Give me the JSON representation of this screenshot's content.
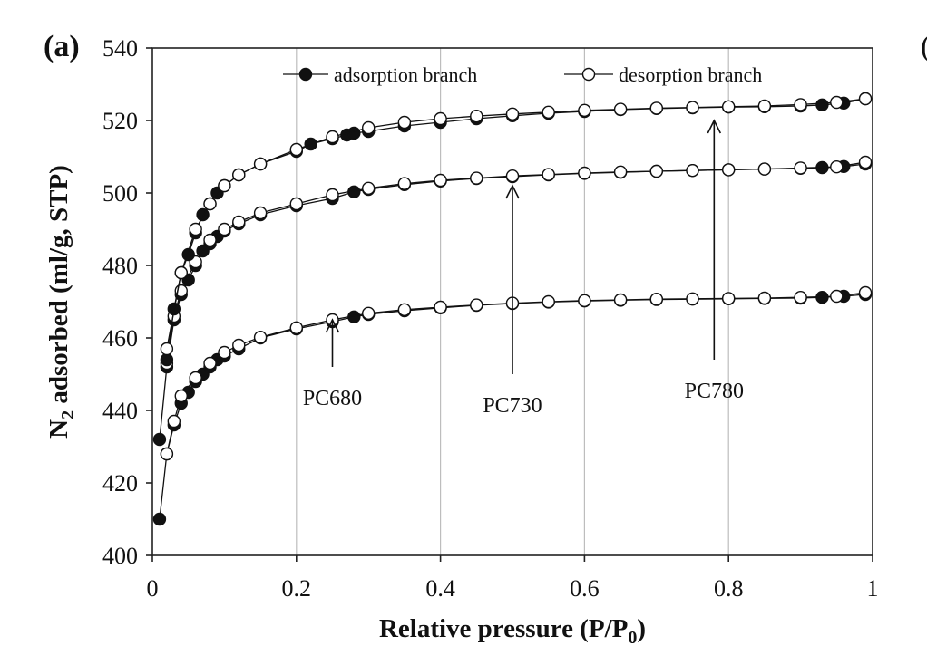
{
  "panel_label": "(a)",
  "clipped_right_char": "(",
  "chart_data": {
    "type": "scatter",
    "title": "",
    "xlabel": "Relative pressure (P/P",
    "xlabel_sub": "0",
    "xlabel_close": ")",
    "ylabel_pre": "N",
    "ylabel_sub": "2",
    "ylabel_main": " adsorbed (ml/g, STP)",
    "xlim": [
      0,
      1
    ],
    "ylim": [
      400,
      540
    ],
    "xticks": [
      0,
      0.2,
      0.4,
      0.6,
      0.8,
      1
    ],
    "xtick_labels": [
      "0",
      "0.2",
      "0.4",
      "0.6",
      "0.8",
      "1"
    ],
    "yticks": [
      400,
      420,
      440,
      460,
      480,
      500,
      520,
      540
    ],
    "ytick_labels": [
      "400",
      "420",
      "440",
      "460",
      "480",
      "500",
      "520",
      "540"
    ],
    "grid": "vertical",
    "legend_position": "top",
    "legend": [
      {
        "label": "adsorption branch",
        "marker": "filled-circle"
      },
      {
        "label": "desorption branch",
        "marker": "open-circle"
      }
    ],
    "annotations": [
      {
        "text": "PC680",
        "arrow_from": [
          0.25,
          452
        ],
        "arrow_to": [
          0.25,
          465
        ]
      },
      {
        "text": "PC730",
        "arrow_from": [
          0.5,
          450
        ],
        "arrow_to": [
          0.5,
          502
        ]
      },
      {
        "text": "PC780",
        "arrow_from": [
          0.78,
          454
        ],
        "arrow_to": [
          0.78,
          520
        ]
      }
    ],
    "series": [
      {
        "group": "PC680",
        "kind": "adsorption",
        "x": [
          0.01,
          0.02,
          0.03,
          0.04,
          0.05,
          0.06,
          0.07,
          0.08,
          0.09,
          0.1,
          0.12,
          0.15,
          0.2,
          0.25,
          0.28,
          0.3,
          0.35,
          0.4,
          0.45,
          0.5,
          0.55,
          0.6,
          0.65,
          0.7,
          0.75,
          0.8,
          0.85,
          0.9,
          0.93,
          0.96,
          0.99
        ],
        "y": [
          410,
          428,
          436,
          442,
          445,
          448,
          450,
          452,
          454,
          455,
          457,
          460,
          462.5,
          464.5,
          465.8,
          466.5,
          467.5,
          468.3,
          469,
          469.5,
          469.9,
          470.2,
          470.4,
          470.6,
          470.7,
          470.8,
          470.9,
          471,
          471.2,
          471.5,
          472
        ]
      },
      {
        "group": "PC680",
        "kind": "desorption",
        "x": [
          0.99,
          0.95,
          0.9,
          0.85,
          0.8,
          0.75,
          0.7,
          0.65,
          0.6,
          0.55,
          0.5,
          0.45,
          0.4,
          0.35,
          0.3,
          0.25,
          0.2,
          0.15,
          0.12,
          0.1,
          0.08,
          0.06,
          0.04,
          0.03,
          0.02
        ],
        "y": [
          472.5,
          471.5,
          471.2,
          471,
          470.9,
          470.8,
          470.7,
          470.5,
          470.3,
          470,
          469.6,
          469.1,
          468.5,
          467.8,
          466.8,
          465,
          462.8,
          460.2,
          458,
          456,
          453,
          449,
          444,
          437,
          428
        ]
      },
      {
        "group": "PC730",
        "kind": "adsorption",
        "x": [
          0.01,
          0.02,
          0.03,
          0.04,
          0.05,
          0.06,
          0.07,
          0.08,
          0.09,
          0.1,
          0.12,
          0.15,
          0.2,
          0.25,
          0.28,
          0.3,
          0.35,
          0.4,
          0.45,
          0.5,
          0.55,
          0.6,
          0.65,
          0.7,
          0.75,
          0.8,
          0.85,
          0.9,
          0.93,
          0.96,
          0.99
        ],
        "y": [
          432,
          452,
          465,
          472,
          476,
          480,
          484,
          486,
          488,
          489.5,
          491.5,
          494,
          496.5,
          498.5,
          500.3,
          501,
          502.3,
          503.3,
          504,
          504.5,
          505,
          505.4,
          505.7,
          506,
          506.2,
          506.4,
          506.6,
          506.8,
          507,
          507.3,
          508
        ]
      },
      {
        "group": "PC730",
        "kind": "desorption",
        "x": [
          0.99,
          0.95,
          0.9,
          0.85,
          0.8,
          0.75,
          0.7,
          0.65,
          0.6,
          0.55,
          0.5,
          0.45,
          0.4,
          0.35,
          0.3,
          0.25,
          0.2,
          0.15,
          0.12,
          0.1,
          0.08,
          0.06,
          0.04,
          0.03,
          0.02
        ],
        "y": [
          508.5,
          507.2,
          506.9,
          506.6,
          506.4,
          506.2,
          506,
          505.8,
          505.5,
          505.1,
          504.7,
          504.1,
          503.5,
          502.6,
          501.3,
          499.5,
          497,
          494.5,
          492,
          490,
          487,
          481,
          473,
          466,
          453
        ]
      },
      {
        "group": "PC780",
        "kind": "adsorption",
        "x": [
          0.02,
          0.03,
          0.04,
          0.05,
          0.06,
          0.07,
          0.08,
          0.09,
          0.1,
          0.12,
          0.15,
          0.2,
          0.22,
          0.25,
          0.27,
          0.28,
          0.3,
          0.35,
          0.4,
          0.45,
          0.5,
          0.55,
          0.6,
          0.65,
          0.7,
          0.75,
          0.8,
          0.85,
          0.9,
          0.93,
          0.96,
          0.99
        ],
        "y": [
          454,
          468,
          478,
          483,
          489,
          494,
          497,
          500,
          502,
          505,
          508,
          511.5,
          513.5,
          515,
          516,
          516.5,
          517,
          518.5,
          519.5,
          520.5,
          521.3,
          522,
          522.5,
          523,
          523.3,
          523.5,
          523.7,
          523.8,
          524,
          524.3,
          524.8,
          526
        ]
      },
      {
        "group": "PC780",
        "kind": "desorption",
        "x": [
          0.99,
          0.95,
          0.9,
          0.85,
          0.8,
          0.75,
          0.7,
          0.65,
          0.6,
          0.55,
          0.5,
          0.45,
          0.4,
          0.35,
          0.3,
          0.25,
          0.2,
          0.15,
          0.12,
          0.1,
          0.08,
          0.06,
          0.04,
          0.02
        ],
        "y": [
          526,
          525,
          524.4,
          524,
          523.8,
          523.6,
          523.4,
          523.1,
          522.8,
          522.3,
          521.8,
          521.2,
          520.5,
          519.5,
          518,
          515.5,
          512,
          508,
          505,
          502,
          497,
          490,
          478,
          457
        ]
      }
    ]
  }
}
